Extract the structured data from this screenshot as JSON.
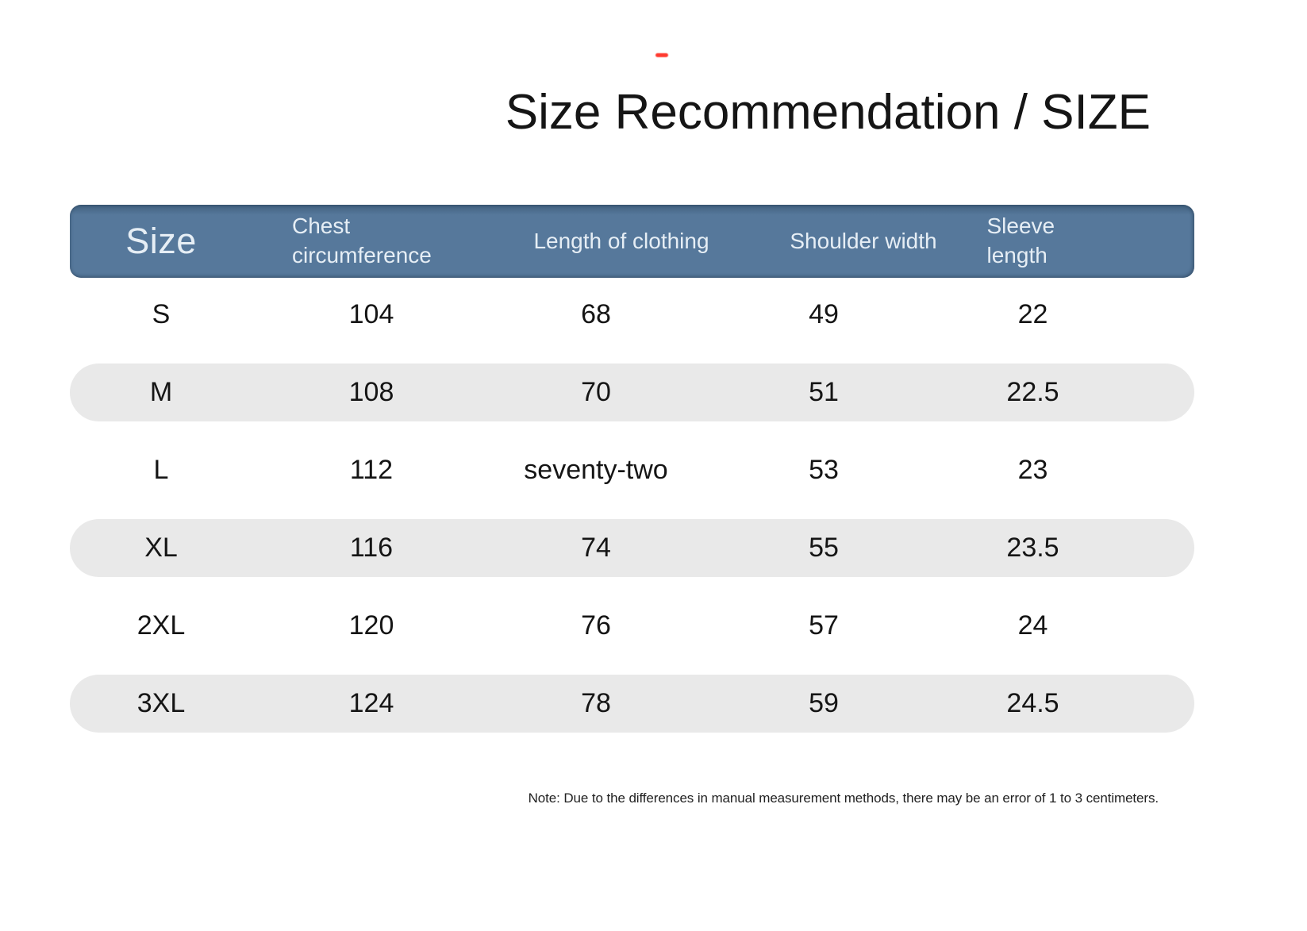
{
  "page": {
    "title": "Size Recommendation / SIZE",
    "note": "Note: Due to the differences in manual measurement methods, there may be an error of 1 to 3 centimeters.",
    "colors": {
      "header_bg": "#56789b",
      "header_bg_dark": "#41617f",
      "header_text": "#e6eef5",
      "row_alt_bg": "#e9e9e9",
      "accent_red": "#ff3b30",
      "text_color": "#151515"
    }
  },
  "table": {
    "columns": [
      "Size",
      "Chest circumference",
      "Length of clothing",
      "Shoulder width",
      "Sleeve length"
    ],
    "rows": [
      {
        "size": "S",
        "chest": "104",
        "length": "68",
        "shoulder": "49",
        "sleeve": "22"
      },
      {
        "size": "M",
        "chest": "108",
        "length": "70",
        "shoulder": "51",
        "sleeve": "22.5"
      },
      {
        "size": "L",
        "chest": "112",
        "length": "seventy-two",
        "shoulder": "53",
        "sleeve": "23"
      },
      {
        "size": "XL",
        "chest": "116",
        "length": "74",
        "shoulder": "55",
        "sleeve": "23.5"
      },
      {
        "size": "2XL",
        "chest": "120",
        "length": "76",
        "shoulder": "57",
        "sleeve": "24"
      },
      {
        "size": "3XL",
        "chest": "124",
        "length": "78",
        "shoulder": "59",
        "sleeve": "24.5"
      }
    ]
  }
}
